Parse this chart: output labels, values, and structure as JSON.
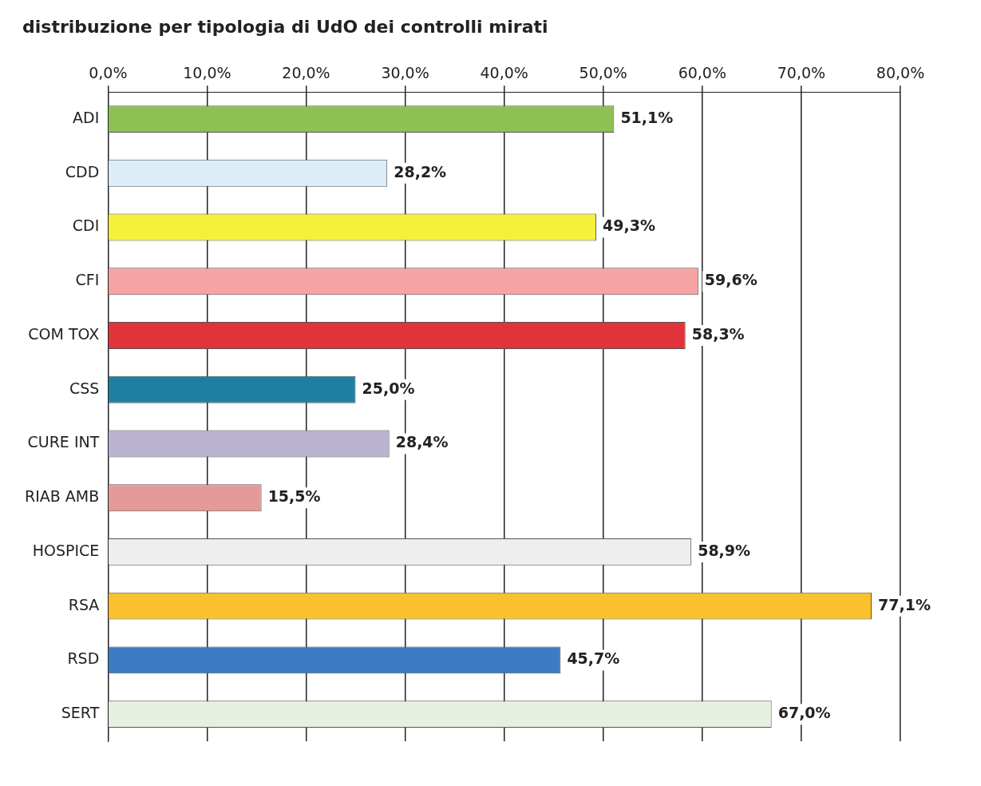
{
  "chart_data": {
    "type": "bar",
    "orientation": "horizontal",
    "title": "distribuzione per tipologia di UdO dei controlli mirati",
    "categories": [
      "ADI",
      "CDD",
      "CDI",
      "CFI",
      "COM TOX",
      "CSS",
      "CURE INT",
      "RIAB AMB",
      "HOSPICE",
      "RSA",
      "RSD",
      "SERT"
    ],
    "values": [
      51.1,
      28.2,
      49.3,
      59.6,
      58.3,
      25.0,
      28.4,
      15.5,
      58.9,
      77.1,
      45.7,
      67.0
    ],
    "value_labels": [
      "51,1%",
      "28,2%",
      "49,3%",
      "59,6%",
      "58,3%",
      "25,0%",
      "28,4%",
      "15,5%",
      "58,9%",
      "77,1%",
      "45,7%",
      "67,0%"
    ],
    "colors": [
      "#8dc152",
      "#dbeef8",
      "#f5f03a",
      "#f7a3a3",
      "#e0333a",
      "#1f7fa0",
      "#b9b3d0",
      "#e59a99",
      "#eeeeee",
      "#fbc02d",
      "#3b7cc4",
      "#e6f0e0"
    ],
    "xlim": [
      0,
      80
    ],
    "xticks": [
      {
        "value": 0,
        "label": "0,0%"
      },
      {
        "value": 10,
        "label": "10,0%"
      },
      {
        "value": 20,
        "label": "20,0%"
      },
      {
        "value": 30,
        "label": "30,0%"
      },
      {
        "value": 40,
        "label": "40,0%"
      },
      {
        "value": 50,
        "label": "50,0%"
      },
      {
        "value": 60,
        "label": "60,0%"
      },
      {
        "value": 70,
        "label": "70,0%"
      },
      {
        "value": 80,
        "label": "80,0%"
      }
    ],
    "grid": "x",
    "legend": false
  }
}
